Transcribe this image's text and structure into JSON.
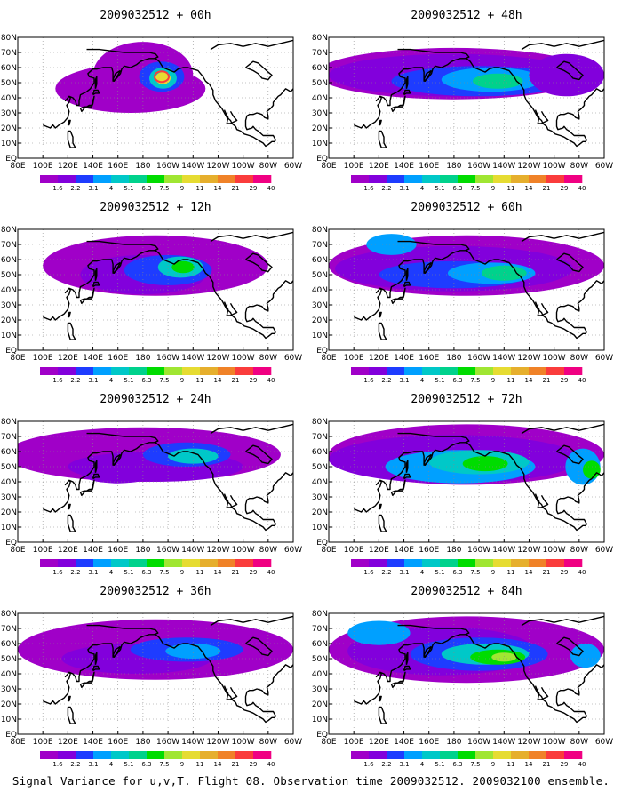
{
  "caption": "Signal Variance for u,v,T. Flight 08. Observation time 2009032512. 2009032100 ensemble.",
  "panels": [
    {
      "title": "2009032512 + 00h"
    },
    {
      "title": "2009032512 + 48h"
    },
    {
      "title": "2009032512 + 12h"
    },
    {
      "title": "2009032512 + 60h"
    },
    {
      "title": "2009032512 + 24h"
    },
    {
      "title": "2009032512 + 72h"
    },
    {
      "title": "2009032512 + 36h"
    },
    {
      "title": "2009032512 + 84h"
    }
  ],
  "chart_data": {
    "type": "heatmap",
    "caption": "Signal Variance for u,v,T. Flight 08. Observation time 2009032512. 2009032100 ensemble.",
    "lon_ticks": [
      "80E",
      "100E",
      "120E",
      "140E",
      "160E",
      "180",
      "160W",
      "140W",
      "120W",
      "100W",
      "80W",
      "60W"
    ],
    "lat_ticks": [
      "80N",
      "70N",
      "60N",
      "50N",
      "40N",
      "30N",
      "20N",
      "10N",
      "EQ"
    ],
    "lon_range": [
      "80E",
      "60W"
    ],
    "lat_range": [
      "EQ",
      "80N"
    ],
    "grid": true,
    "colorbar": {
      "levels": [
        "1.6",
        "2.2",
        "3.1",
        "4",
        "5.1",
        "6.3",
        "7.5",
        "9",
        "11",
        "14",
        "21",
        "29",
        "40"
      ],
      "colors": [
        "#a000c8",
        "#8200dc",
        "#1e3cff",
        "#00a0ff",
        "#00c8c8",
        "#00d28c",
        "#00dc00",
        "#a0e632",
        "#e6dc32",
        "#e6af2d",
        "#f08228",
        "#fa3c3c",
        "#f00082"
      ]
    },
    "lead_times_h": [
      0,
      48,
      12,
      60,
      24,
      72,
      36,
      84
    ]
  }
}
